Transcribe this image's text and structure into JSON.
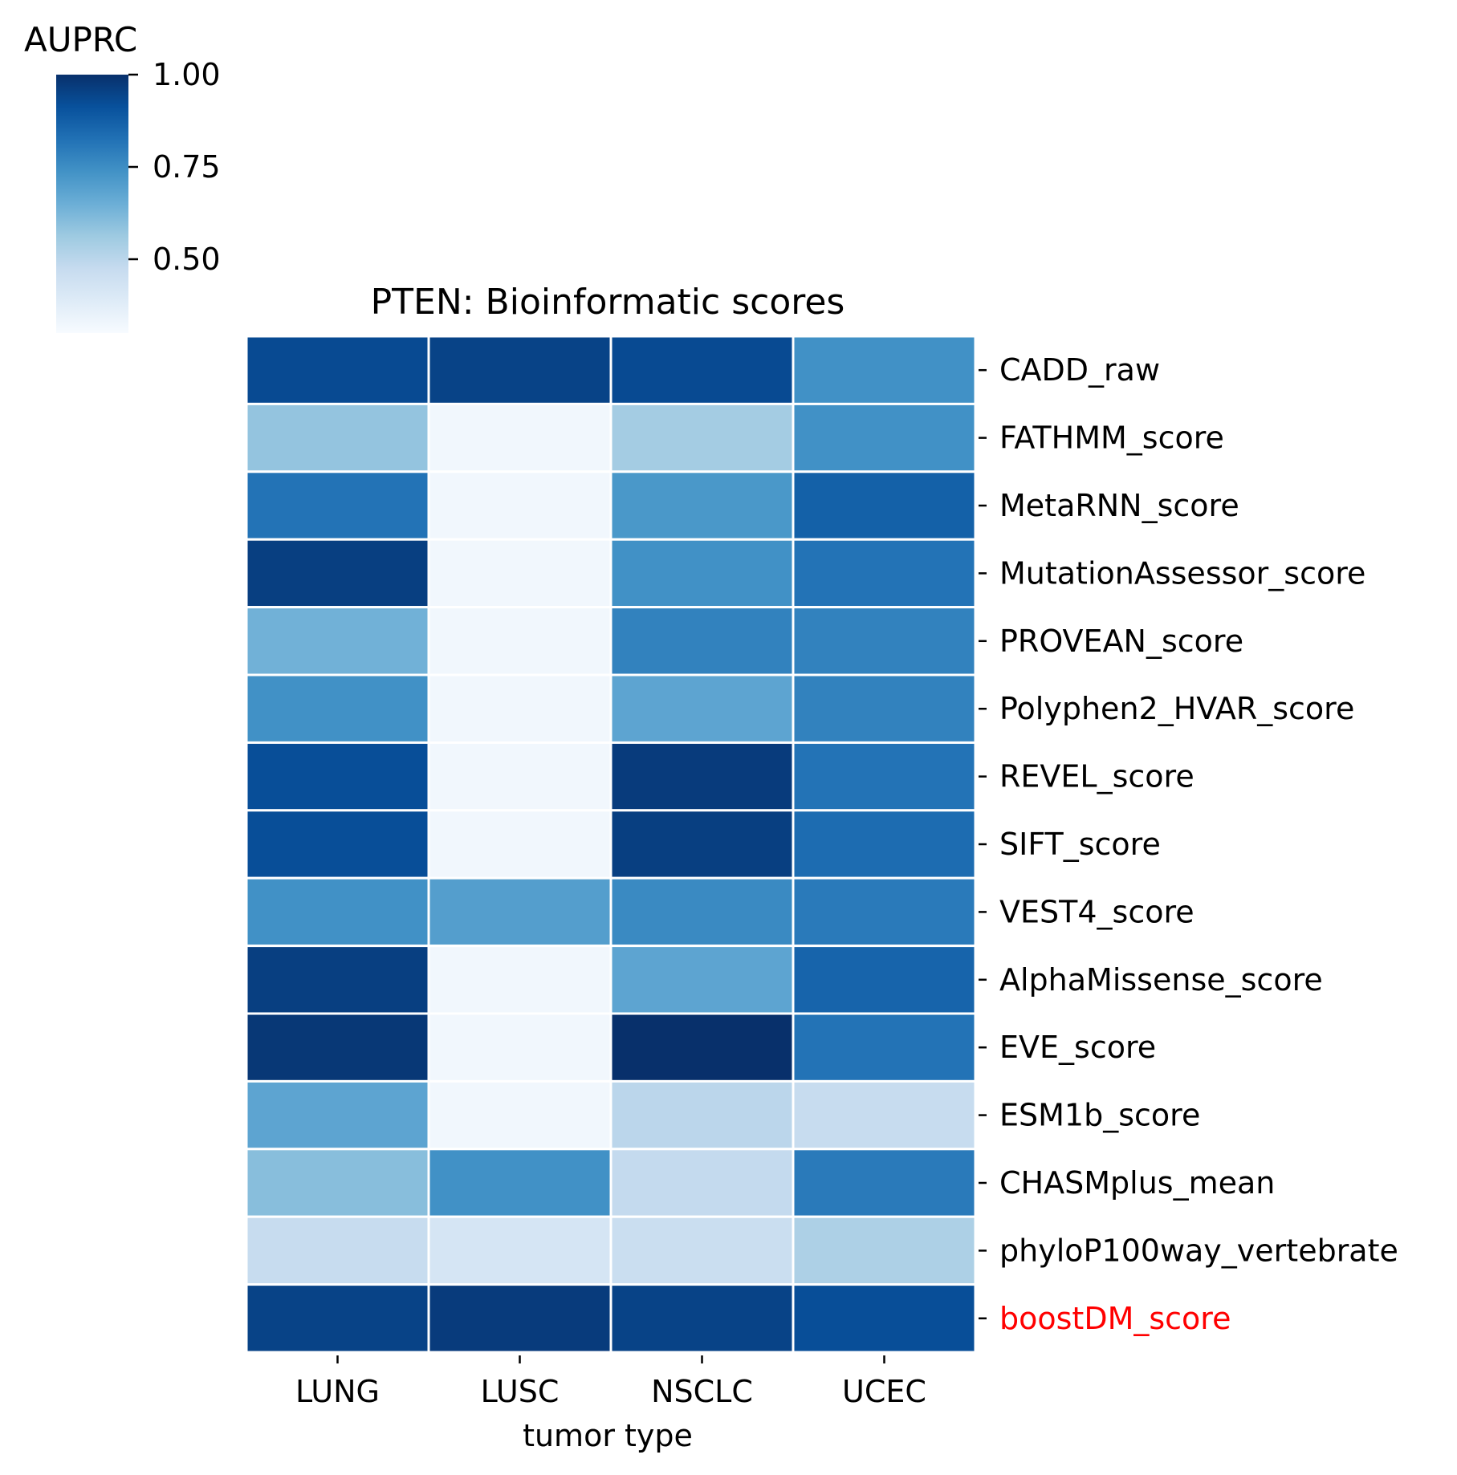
{
  "chart_data": {
    "type": "heatmap",
    "title": "PTEN: Bioinformatic scores",
    "xlabel": "tumor type",
    "ylabel": "",
    "x_categories": [
      "LUNG",
      "LUSC",
      "NSCLC",
      "UCEC"
    ],
    "y_categories": [
      "CADD_raw",
      "FATHMM_score",
      "MetaRNN_score",
      "MutationAssessor_score",
      "PROVEAN_score",
      "Polyphen2_HVAR_score",
      "REVEL_score",
      "SIFT_score",
      "VEST4_score",
      "AlphaMissense_score",
      "EVE_score",
      "ESM1b_score",
      "CHASMplus_mean",
      "phyloP100way_vertebrate",
      "boostDM_score"
    ],
    "highlighted_row": "boostDM_score",
    "highlight_color": "#ff0000",
    "values": [
      [
        0.93,
        0.95,
        0.93,
        0.74
      ],
      [
        0.58,
        0.32,
        0.55,
        0.74
      ],
      [
        0.82,
        0.32,
        0.72,
        0.87
      ],
      [
        0.96,
        0.32,
        0.74,
        0.82
      ],
      [
        0.64,
        0.32,
        0.78,
        0.78
      ],
      [
        0.74,
        0.32,
        0.68,
        0.78
      ],
      [
        0.92,
        0.32,
        0.97,
        0.82
      ],
      [
        0.92,
        0.32,
        0.96,
        0.84
      ],
      [
        0.74,
        0.7,
        0.76,
        0.8
      ],
      [
        0.96,
        0.32,
        0.68,
        0.86
      ],
      [
        0.98,
        0.32,
        1.0,
        0.82
      ],
      [
        0.68,
        0.32,
        0.5,
        0.47
      ],
      [
        0.6,
        0.74,
        0.48,
        0.8
      ],
      [
        0.47,
        0.42,
        0.46,
        0.53
      ],
      [
        0.95,
        0.97,
        0.95,
        0.92
      ]
    ],
    "colorbar": {
      "label": "AUPRC",
      "colormap": "Blues",
      "vmin": 0.3,
      "vmax": 1.0,
      "ticks": [
        0.5,
        0.75,
        1.0
      ],
      "tick_labels": [
        "0.50",
        "0.75",
        "1.00"
      ]
    }
  }
}
